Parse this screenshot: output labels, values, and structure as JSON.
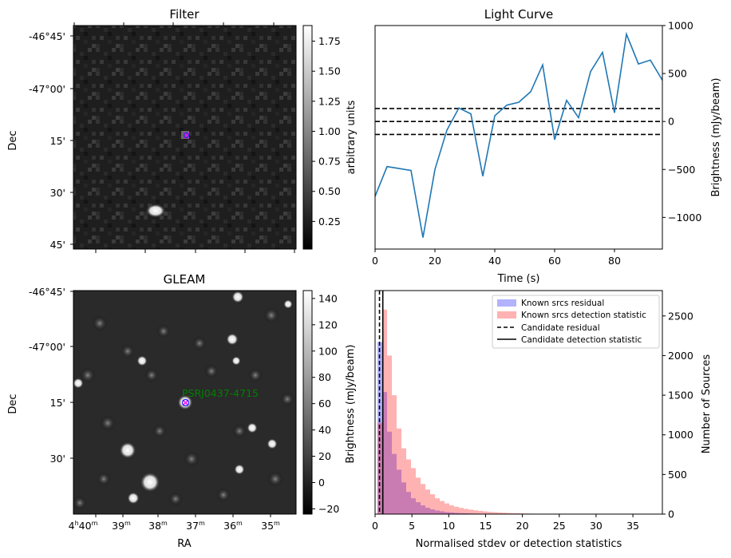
{
  "panels": {
    "filter": {
      "title": "Filter",
      "xlabel": "",
      "ylabel": "Dec",
      "dec_ticks": [
        "-46°45'",
        "-47°00'",
        "15'",
        "30'",
        "45'"
      ],
      "colorbar": {
        "label": "arbitrary units",
        "range": [
          0.02,
          1.88
        ],
        "ticks": [
          "0.25",
          "0.50",
          "0.75",
          "1.00",
          "1.25",
          "1.50",
          "1.75"
        ],
        "tick_values": [
          0.25,
          0.5,
          0.75,
          1.0,
          1.25,
          1.5,
          1.75
        ]
      }
    },
    "gleam": {
      "title": "GLEAM",
      "xlabel": "RA",
      "ylabel": "Dec",
      "dec_ticks": [
        "-46°45'",
        "-47°00'",
        "15'",
        "30'"
      ],
      "ra_ticks": [
        "4h40m",
        "39m",
        "38m",
        "37m",
        "36m",
        "35m"
      ],
      "source_label": "PSRJ0437-4715",
      "source_label_color": "#008000",
      "colorbar": {
        "label": "Brightness (mJy/beam)",
        "range": [
          -24,
          146
        ],
        "ticks": [
          "−20",
          "0",
          "20",
          "40",
          "60",
          "80",
          "100",
          "120",
          "140"
        ],
        "tick_values": [
          -20,
          0,
          20,
          40,
          60,
          80,
          100,
          120,
          140
        ]
      }
    }
  },
  "chart_data": [
    {
      "type": "line",
      "title": "Light Curve",
      "xlabel": "Time (s)",
      "ylabel": "Brightness (mJy/beam)",
      "xlim": [
        0,
        96
      ],
      "ylim": [
        -1330,
        1000
      ],
      "x_ticks": [
        "0",
        "20",
        "40",
        "60",
        "80"
      ],
      "x_tick_values": [
        0,
        20,
        40,
        60,
        80
      ],
      "y_ticks": [
        "−1000",
        "−500",
        "0",
        "500",
        "1000"
      ],
      "y_tick_values": [
        -1000,
        -500,
        0,
        500,
        1000
      ],
      "line_color": "#1f77b4",
      "series": [
        {
          "x": [
            0,
            4,
            8,
            12,
            16,
            20,
            24,
            28,
            32,
            36,
            40,
            44,
            48,
            52,
            56,
            60,
            64,
            68,
            72,
            76,
            80,
            84,
            88,
            92,
            96
          ],
          "values": [
            -780,
            -470,
            -490,
            -510,
            -1210,
            -500,
            -90,
            140,
            80,
            -570,
            60,
            170,
            200,
            310,
            590,
            -190,
            220,
            40,
            520,
            720,
            90,
            910,
            600,
            640,
            430
          ]
        }
      ],
      "hlines": [
        135,
        0,
        -135
      ],
      "hline_style": "dashed"
    },
    {
      "type": "bar",
      "title": "",
      "xlabel": "Normalised stdev or detection statistics",
      "ylabel": "Number of Sources",
      "xlim": [
        0,
        39
      ],
      "ylim": [
        0,
        2820
      ],
      "x_ticks": [
        "0",
        "5",
        "10",
        "15",
        "20",
        "25",
        "30",
        "35"
      ],
      "x_tick_values": [
        0,
        5,
        10,
        15,
        20,
        25,
        30,
        35
      ],
      "y_ticks": [
        "0",
        "500",
        "1000",
        "1500",
        "2000",
        "2500"
      ],
      "y_tick_values": [
        0,
        500,
        1000,
        1500,
        2000,
        2500
      ],
      "bin_width": 0.65,
      "series": [
        {
          "name": "Known srcs residual",
          "color": "#7f7ff5",
          "bin_start": 0.325,
          "values": [
            2170,
            1540,
            1040,
            760,
            560,
            400,
            280,
            200,
            150,
            110,
            80,
            60,
            45,
            35,
            25,
            20,
            15,
            12,
            10,
            8,
            6,
            5,
            4,
            3,
            2,
            2,
            2,
            1,
            1,
            1,
            1,
            1
          ]
        },
        {
          "name": "Known srcs detection statistic",
          "color": "#ff7f7f",
          "bin_start": 0.325,
          "values": [
            1150,
            2580,
            2000,
            1500,
            1080,
            830,
            690,
            580,
            460,
            380,
            310,
            250,
            200,
            165,
            135,
            110,
            92,
            78,
            66,
            56,
            48,
            40,
            34,
            28,
            24,
            20,
            17,
            14,
            12,
            10,
            8,
            7,
            6,
            5,
            4,
            4,
            3,
            3,
            2,
            2,
            2,
            2,
            2,
            1,
            1,
            1,
            1,
            1,
            1,
            1,
            1,
            1,
            1,
            1,
            1
          ]
        }
      ],
      "vlines": [
        {
          "name": "Candidate residual",
          "x": 0.6,
          "style": "dashed"
        },
        {
          "name": "Candidate detection statistic",
          "x": 1.05,
          "style": "solid"
        }
      ]
    }
  ]
}
